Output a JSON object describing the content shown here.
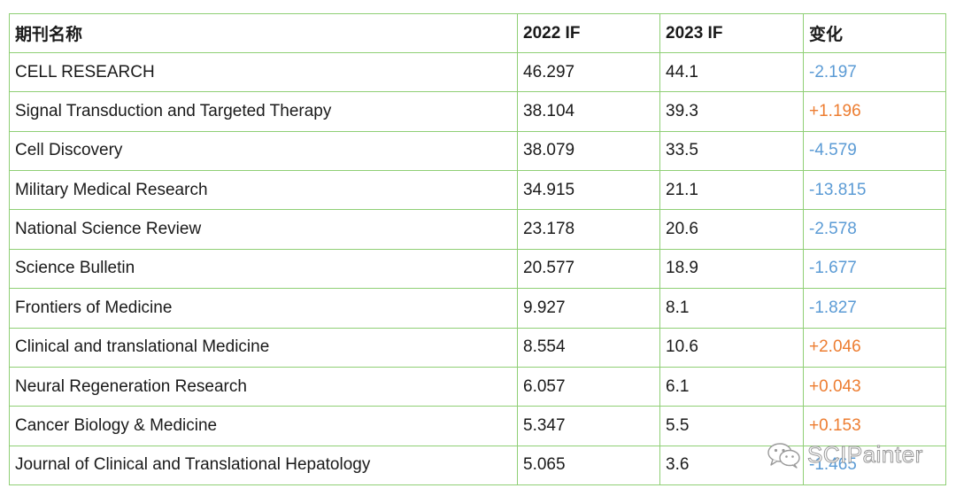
{
  "table": {
    "headers": [
      "期刊名称",
      "2022 IF",
      "2023 IF",
      "变化"
    ],
    "rows": [
      {
        "name": "CELL RESEARCH",
        "if2022": "46.297",
        "if2023": "44.1",
        "change": "-2.197",
        "trend": "neg"
      },
      {
        "name": "Signal Transduction and Targeted Therapy",
        "if2022": "38.104",
        "if2023": "39.3",
        "change": "+1.196",
        "trend": "pos"
      },
      {
        "name": "Cell Discovery",
        "if2022": "38.079",
        "if2023": "33.5",
        "change": "-4.579",
        "trend": "neg"
      },
      {
        "name": "Military Medical Research",
        "if2022": "34.915",
        "if2023": "21.1",
        "change": "-13.815",
        "trend": "neg"
      },
      {
        "name": "National Science Review",
        "if2022": "23.178",
        "if2023": "20.6",
        "change": "-2.578",
        "trend": "neg"
      },
      {
        "name": "Science Bulletin",
        "if2022": "20.577",
        "if2023": "18.9",
        "change": "-1.677",
        "trend": "neg"
      },
      {
        "name": "Frontiers of Medicine",
        "if2022": "9.927",
        "if2023": "8.1",
        "change": "-1.827",
        "trend": "neg"
      },
      {
        "name": "Clinical and translational Medicine",
        "if2022": "8.554",
        "if2023": "10.6",
        "change": "+2.046",
        "trend": "pos"
      },
      {
        "name": "Neural Regeneration Research",
        "if2022": "6.057",
        "if2023": "6.1",
        "change": "+0.043",
        "trend": "pos"
      },
      {
        "name": "Cancer Biology & Medicine",
        "if2022": "5.347",
        "if2023": "5.5",
        "change": "+0.153",
        "trend": "pos"
      },
      {
        "name": "Journal of Clinical and Translational Hepatology",
        "if2022": "5.065",
        "if2023": "3.6",
        "change": "-1.465",
        "trend": "neg"
      }
    ]
  },
  "colors": {
    "border": "#8fcf75",
    "negative": "#5b9bd5",
    "positive": "#ed7d31"
  },
  "watermark": {
    "text": "SCIPainter",
    "icon": "wechat-icon"
  }
}
